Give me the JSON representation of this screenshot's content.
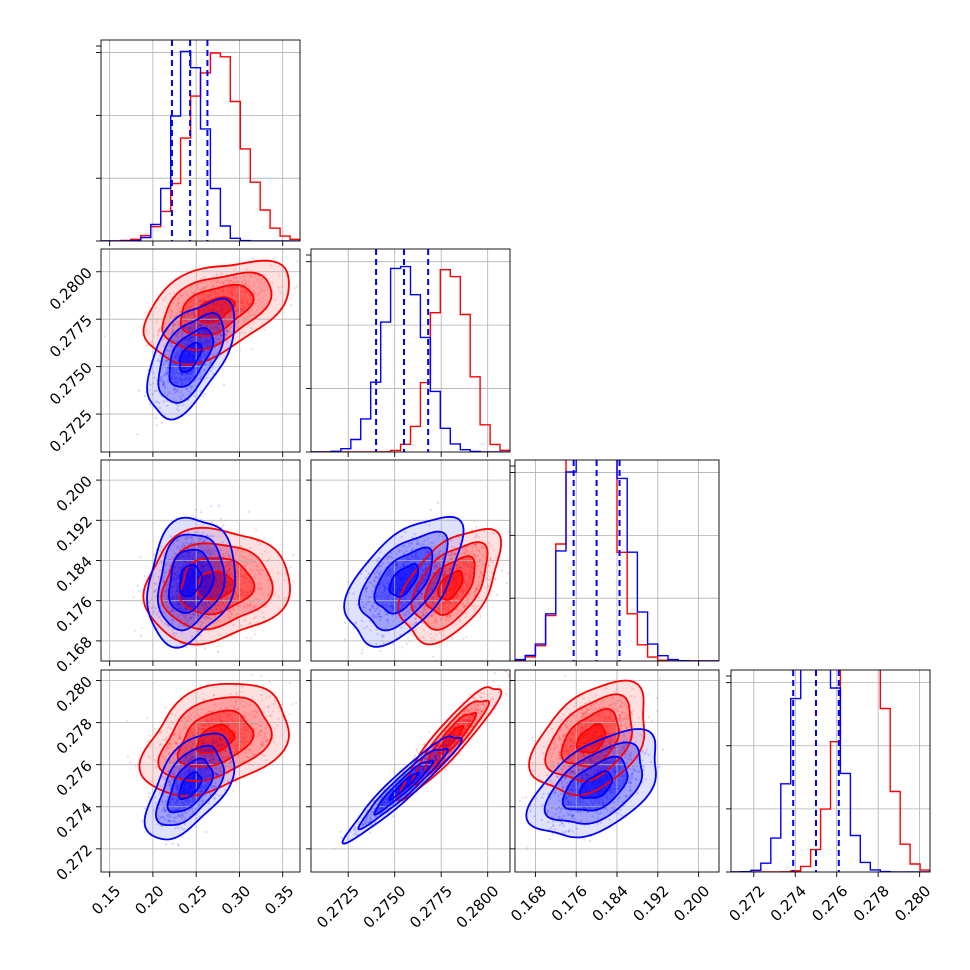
{
  "chart_data": {
    "type": "corner",
    "grid": true,
    "parameters": [
      {
        "range": [
          0.14,
          0.37
        ],
        "ticks": [
          0.15,
          0.2,
          0.25,
          0.3,
          0.35
        ],
        "tick_labels": [
          "0.15",
          "0.20",
          "0.25",
          "0.30",
          "0.35"
        ]
      },
      {
        "range": [
          0.2705,
          0.2812
        ],
        "ticks": [
          0.2725,
          0.275,
          0.2775,
          0.28
        ],
        "tick_labels": [
          "0.2725",
          "0.2750",
          "0.2775",
          "0.2800"
        ]
      },
      {
        "range": [
          0.164,
          0.204
        ],
        "ticks": [
          0.168,
          0.176,
          0.184,
          0.192,
          0.2
        ],
        "tick_labels": [
          "0.168",
          "0.176",
          "0.184",
          "0.192",
          "0.200"
        ]
      },
      {
        "range": [
          0.2709,
          0.2805
        ],
        "ticks": [
          0.272,
          0.274,
          0.276,
          0.278,
          0.28
        ],
        "tick_labels": [
          "0.272",
          "0.274",
          "0.276",
          "0.278",
          "0.280"
        ]
      }
    ],
    "series": [
      {
        "color": "#ff0000",
        "mean": [
          0.272,
          0.278,
          0.179,
          0.2772
        ],
        "std": [
          0.03,
          0.00095,
          0.004,
          0.00095
        ],
        "corr": [
          [
            1,
            0.45,
            0.1,
            0.35
          ],
          [
            0.45,
            1,
            0.5,
            0.92
          ],
          [
            0.1,
            0.5,
            1,
            0.4
          ],
          [
            0.35,
            0.92,
            0.4,
            1
          ]
        ]
      },
      {
        "color": "#0000ff",
        "mean": [
          0.243,
          0.2755,
          0.18,
          0.275
        ],
        "std": [
          0.018,
          0.0011,
          0.0045,
          0.0009
        ],
        "corr": [
          [
            1,
            0.55,
            0.2,
            0.55
          ],
          [
            0.55,
            1,
            0.55,
            0.95
          ],
          [
            0.2,
            0.55,
            1,
            0.5
          ],
          [
            0.55,
            0.95,
            0.5,
            1
          ]
        ]
      }
    ],
    "quantile_lines": {
      "color": "#0000ff",
      "values": [
        [
          0.222,
          0.243,
          0.263
        ],
        [
          0.274,
          0.2755,
          0.2768
        ],
        [
          0.1755,
          0.18,
          0.1845
        ],
        [
          0.2739,
          0.275,
          0.2761
        ]
      ]
    },
    "histogram_bins": 20,
    "hist_ylim": [
      [
        0,
        2.6
      ],
      [
        0,
        2.6
      ],
      [
        0,
        1.4
      ],
      [
        0,
        1.5
      ]
    ],
    "contour_levels_sigma": [
      0.5,
      1.0,
      1.5,
      2.0
    ]
  }
}
